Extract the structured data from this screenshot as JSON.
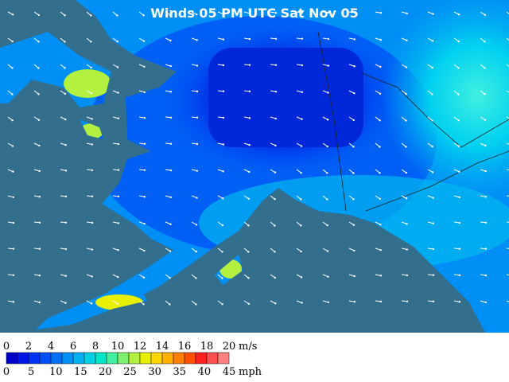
{
  "title": "Winds 05 PM UTC Sat Nov 05",
  "legend": {
    "colors": [
      "#0000c8",
      "#0014e6",
      "#0032f0",
      "#0050f5",
      "#0070f5",
      "#0090f5",
      "#00b0f0",
      "#00d0e6",
      "#00e6c8",
      "#40f0a0",
      "#80f070",
      "#b4f040",
      "#e6f000",
      "#ffd700",
      "#ffb000",
      "#ff8000",
      "#ff5000",
      "#ff2020",
      "#ff5050",
      "#ff8080"
    ],
    "ms_labels": [
      0,
      2,
      4,
      6,
      8,
      10,
      12,
      14,
      16,
      18,
      20
    ],
    "ms_unit": "m/s",
    "mph_labels": [
      0,
      5,
      10,
      15,
      20,
      25,
      30,
      35,
      40,
      45
    ],
    "mph_unit": "mph"
  }
}
